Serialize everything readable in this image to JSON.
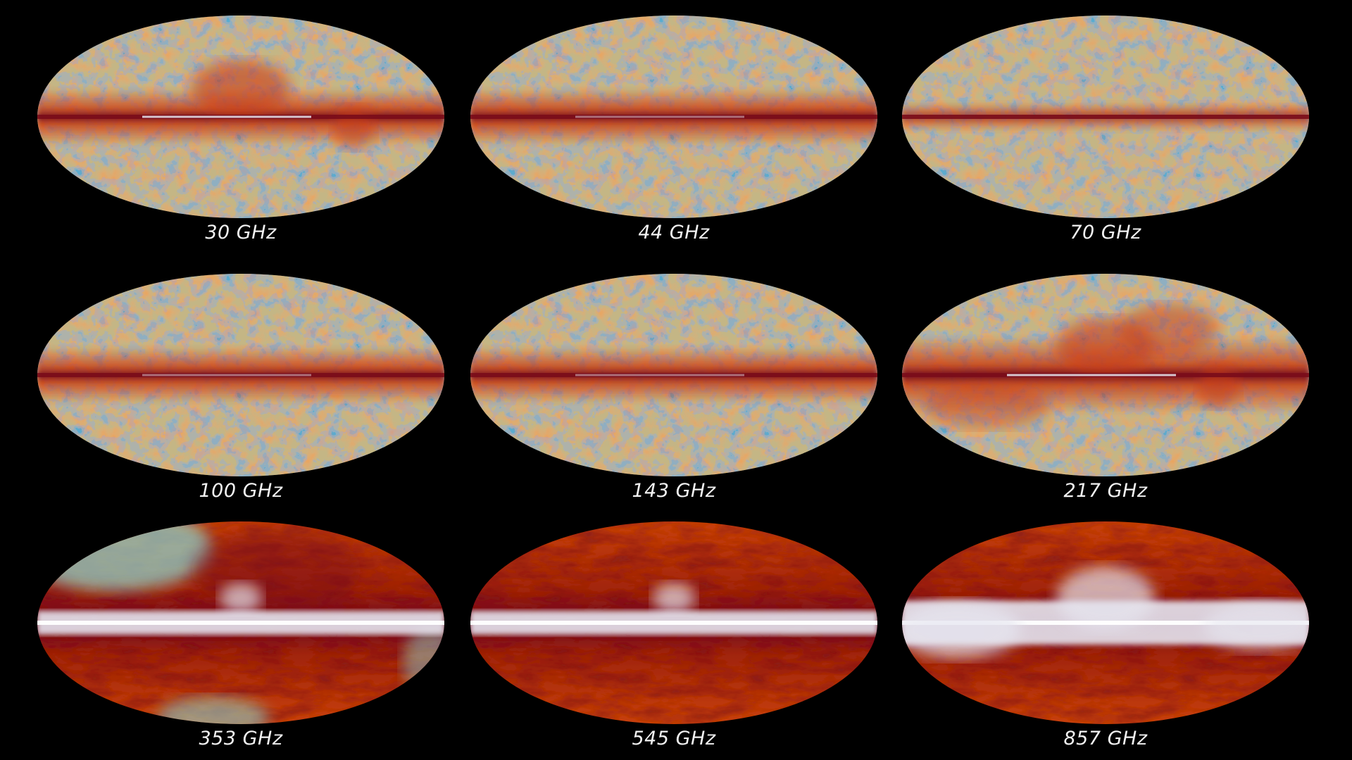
{
  "maps": [
    {
      "label": "30 GHz",
      "style": "cmb-strong"
    },
    {
      "label": "44 GHz",
      "style": "cmb"
    },
    {
      "label": "70 GHz",
      "style": "cmb-light"
    },
    {
      "label": "100 GHz",
      "style": "cmb"
    },
    {
      "label": "143 GHz",
      "style": "cmb"
    },
    {
      "label": "217 GHz",
      "style": "cmb-dust"
    },
    {
      "label": "353 GHz",
      "style": "dust-mixed"
    },
    {
      "label": "545 GHz",
      "style": "dust"
    },
    {
      "label": "857 GHz",
      "style": "dust-strong"
    }
  ],
  "colors": {
    "background": "#000000",
    "cmb_cold": "#2f8fd8",
    "cmb_mid": "#8fd0c8",
    "cmb_warm": "#f0a050",
    "dust_red": "#c83a12",
    "dust_dark": "#7a0c1a",
    "galaxy_white": "#e6e6f0"
  }
}
